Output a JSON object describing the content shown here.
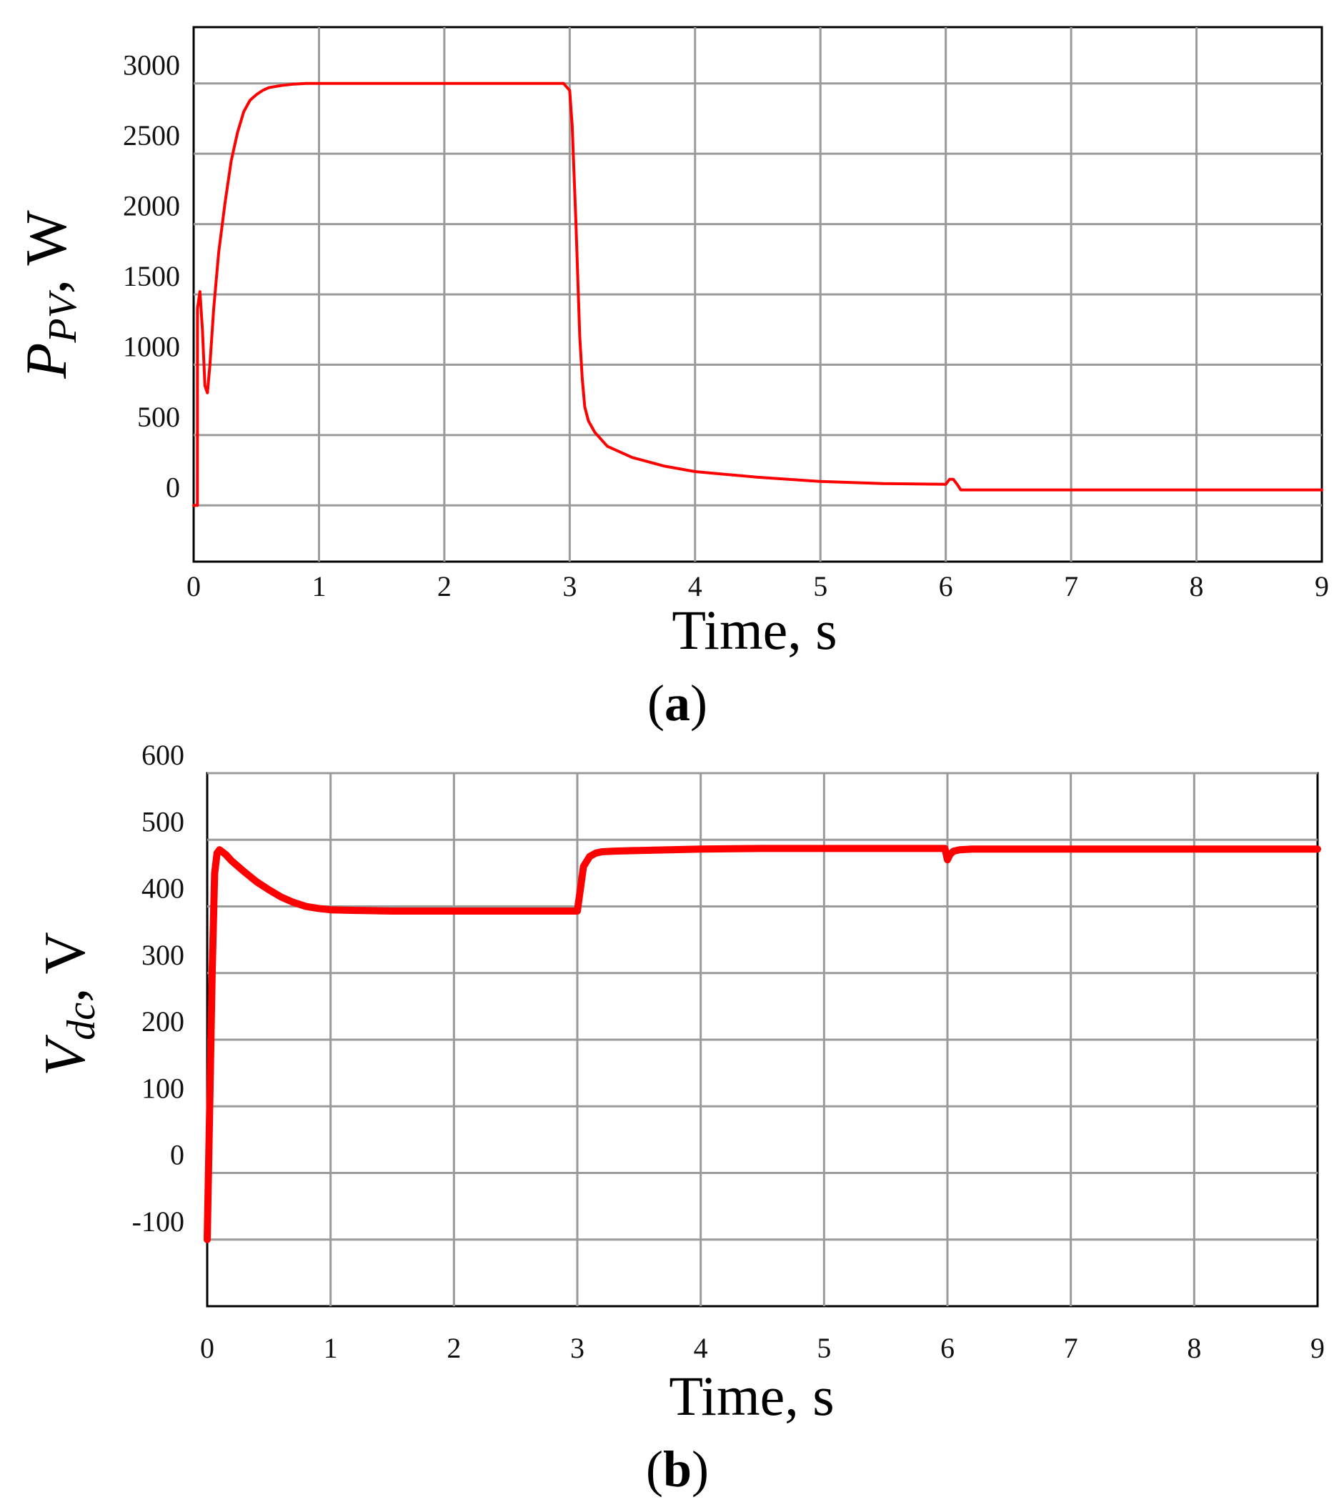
{
  "chart_data": [
    {
      "type": "line",
      "panel_label": "a",
      "xlabel": "Time, s",
      "ylabel": {
        "symbol": "P",
        "subscript": "PV",
        "unit": ", W"
      },
      "xlim": [
        0,
        9
      ],
      "ylim": [
        -400,
        3400
      ],
      "x_ticks": [
        0,
        1,
        2,
        3,
        4,
        5,
        6,
        7,
        8,
        9
      ],
      "y_ticks": [
        0,
        500,
        1000,
        1500,
        2000,
        2500,
        3000
      ],
      "grid": true,
      "series": [
        {
          "color": "#ff0000",
          "x": [
            0,
            0.03,
            0.031,
            0.05,
            0.07,
            0.09,
            0.11,
            0.13,
            0.16,
            0.2,
            0.25,
            0.3,
            0.35,
            0.4,
            0.45,
            0.5,
            0.55,
            0.6,
            0.7,
            0.8,
            0.9,
            1.0,
            1.5,
            2.0,
            2.5,
            2.95,
            3.0,
            3.02,
            3.05,
            3.08,
            3.1,
            3.12,
            3.15,
            3.2,
            3.3,
            3.5,
            3.75,
            4.0,
            4.5,
            5.0,
            5.5,
            6.0,
            6.03,
            6.06,
            6.09,
            6.12,
            6.15,
            6.5,
            7.0,
            8.0,
            9.0
          ],
          "y": [
            0,
            0,
            1400,
            1520,
            1250,
            850,
            800,
            1000,
            1400,
            1800,
            2150,
            2450,
            2650,
            2800,
            2880,
            2920,
            2950,
            2970,
            2985,
            2995,
            3000,
            3000,
            3000,
            3000,
            3000,
            3000,
            2950,
            2700,
            2000,
            1200,
            900,
            700,
            600,
            520,
            420,
            340,
            280,
            240,
            200,
            170,
            155,
            150,
            185,
            185,
            150,
            110,
            110,
            110,
            110,
            110,
            110
          ]
        }
      ]
    },
    {
      "type": "line",
      "panel_label": "b",
      "xlabel": "Time, s",
      "ylabel": {
        "symbol": "V",
        "subscript": "dc",
        "unit": ", V"
      },
      "xlim": [
        0,
        9
      ],
      "ylim": [
        -200,
        600
      ],
      "x_ticks": [
        0,
        1,
        2,
        3,
        4,
        5,
        6,
        7,
        8,
        9
      ],
      "y_ticks": [
        -100,
        0,
        100,
        200,
        300,
        400,
        500,
        600
      ],
      "grid": true,
      "series": [
        {
          "color": "#ff0000",
          "x": [
            0,
            0.02,
            0.04,
            0.06,
            0.08,
            0.1,
            0.15,
            0.2,
            0.3,
            0.4,
            0.5,
            0.6,
            0.7,
            0.8,
            0.9,
            1.0,
            1.2,
            1.5,
            2.0,
            2.5,
            2.95,
            3.0,
            3.02,
            3.05,
            3.1,
            3.15,
            3.2,
            3.3,
            3.5,
            4.0,
            4.5,
            5.0,
            5.5,
            5.98,
            6.0,
            6.02,
            6.05,
            6.1,
            6.2,
            7.0,
            8.0,
            9.0
          ],
          "y": [
            -100,
            100,
            300,
            450,
            480,
            485,
            478,
            468,
            452,
            437,
            425,
            414,
            406,
            400,
            397,
            395,
            394,
            393,
            393,
            393,
            393,
            393,
            420,
            460,
            475,
            480,
            482,
            483,
            484,
            486,
            487,
            487,
            487,
            487,
            470,
            478,
            483,
            485,
            486,
            486,
            486,
            486
          ]
        }
      ]
    }
  ]
}
